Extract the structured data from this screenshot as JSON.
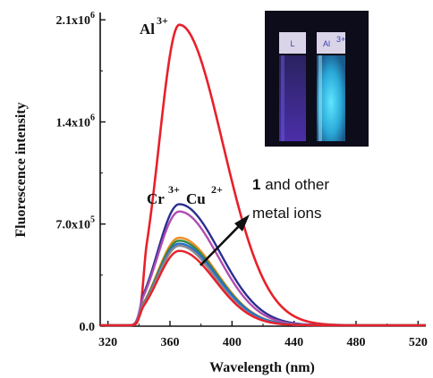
{
  "chart_data": {
    "type": "line",
    "xlabel": "Wavelength (nm)",
    "ylabel": "Fluorescence intensity",
    "xlim": [
      315,
      525
    ],
    "ylim": [
      0,
      2150000
    ],
    "x_ticks": [
      {
        "value": 320,
        "label": "320"
      },
      {
        "value": 360,
        "label": "360"
      },
      {
        "value": 400,
        "label": "400"
      },
      {
        "value": 440,
        "label": "440"
      },
      {
        "value": 480,
        "label": "480"
      },
      {
        "value": 520,
        "label": "520"
      }
    ],
    "y_ticks": [
      {
        "value": 0,
        "mantissa": "0.0",
        "exp": ""
      },
      {
        "value": 700000,
        "mantissa": "7.0x10",
        "exp": "5"
      },
      {
        "value": 1400000,
        "mantissa": "1.4x10",
        "exp": "6"
      },
      {
        "value": 2100000,
        "mantissa": "2.1x10",
        "exp": "6"
      }
    ],
    "peak_x": 366,
    "series": [
      {
        "color": "#e8202a",
        "peak": 2060000,
        "onset": 345,
        "wl": 13,
        "wr": 28
      },
      {
        "color": "#2b2f8f",
        "peak": 830000,
        "onset": 343,
        "wl": 14,
        "wr": 26
      },
      {
        "color": "#b04bb0",
        "peak": 780000,
        "onset": 343,
        "wl": 14,
        "wr": 25
      },
      {
        "color": "#f08a22",
        "peak": 600000,
        "onset": 343,
        "wl": 14,
        "wr": 24
      },
      {
        "color": "#2f8a3f",
        "peak": 580000,
        "onset": 343,
        "wl": 14,
        "wr": 24
      },
      {
        "color": "#2a6fd0",
        "peak": 560000,
        "onset": 343,
        "wl": 14,
        "wr": 24
      },
      {
        "color": "#8a8a8a",
        "peak": 545000,
        "onset": 343,
        "wl": 14,
        "wr": 23
      },
      {
        "color": "#e8202a",
        "peak": 510000,
        "onset": 343,
        "wl": 14,
        "wr": 23
      }
    ],
    "annotations": {
      "al": {
        "base": "Al",
        "sup": "3+"
      },
      "cr": {
        "base": "Cr",
        "sup": "3+"
      },
      "cu": {
        "base": "Cu",
        "sup": "2+"
      },
      "others_bold": "1",
      "others_line1": " and other",
      "others_line2": "metal ions"
    },
    "inset": {
      "vial_left_label": "L",
      "vial_right_label": "Al",
      "vial_right_sup": "3+"
    }
  }
}
